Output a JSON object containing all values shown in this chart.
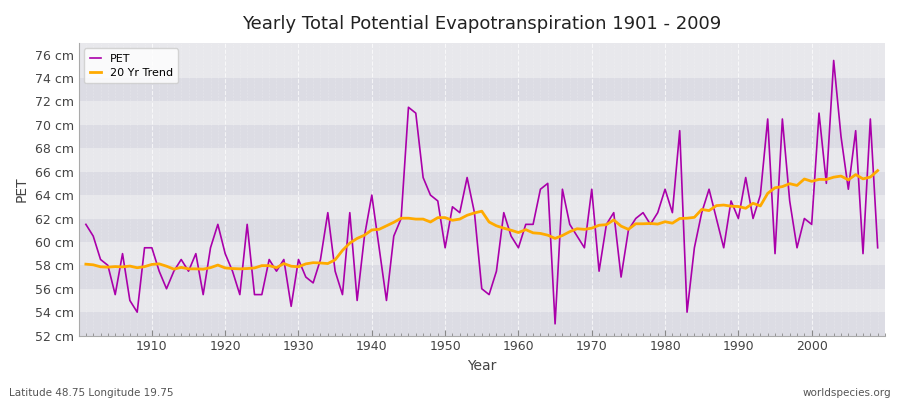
{
  "title": "Yearly Total Potential Evapotranspiration 1901 - 2009",
  "xlabel": "Year",
  "ylabel": "PET",
  "bottom_left_label": "Latitude 48.75 Longitude 19.75",
  "bottom_right_label": "worldspecies.org",
  "pet_color": "#aa00aa",
  "trend_color": "#ffaa00",
  "bg_color": "#ffffff",
  "plot_bg_color": "#e8e8ec",
  "stripe_color": "#dcdce4",
  "ylim": [
    52,
    77
  ],
  "ytick_step": 2,
  "years": [
    1901,
    1902,
    1903,
    1904,
    1905,
    1906,
    1907,
    1908,
    1909,
    1910,
    1911,
    1912,
    1913,
    1914,
    1915,
    1916,
    1917,
    1918,
    1919,
    1920,
    1921,
    1922,
    1923,
    1924,
    1925,
    1926,
    1927,
    1928,
    1929,
    1930,
    1931,
    1932,
    1933,
    1934,
    1935,
    1936,
    1937,
    1938,
    1939,
    1940,
    1941,
    1942,
    1943,
    1944,
    1945,
    1946,
    1947,
    1948,
    1949,
    1950,
    1951,
    1952,
    1953,
    1954,
    1955,
    1956,
    1957,
    1958,
    1959,
    1960,
    1961,
    1962,
    1963,
    1964,
    1965,
    1966,
    1967,
    1968,
    1969,
    1970,
    1971,
    1972,
    1973,
    1974,
    1975,
    1976,
    1977,
    1978,
    1979,
    1980,
    1981,
    1982,
    1983,
    1984,
    1985,
    1986,
    1987,
    1988,
    1989,
    1990,
    1991,
    1992,
    1993,
    1994,
    1995,
    1996,
    1997,
    1998,
    1999,
    2000,
    2001,
    2002,
    2003,
    2004,
    2005,
    2006,
    2007,
    2008,
    2009
  ],
  "pet_values": [
    61.5,
    60.5,
    58.5,
    58.0,
    55.5,
    59.0,
    55.0,
    54.0,
    59.5,
    59.5,
    57.5,
    56.0,
    57.5,
    58.5,
    57.5,
    59.0,
    55.5,
    59.5,
    61.5,
    59.0,
    57.5,
    55.5,
    61.5,
    55.5,
    55.5,
    58.5,
    57.5,
    58.5,
    54.5,
    58.5,
    57.0,
    56.5,
    58.5,
    62.5,
    57.5,
    55.5,
    62.5,
    55.0,
    60.5,
    64.0,
    59.5,
    55.0,
    60.5,
    62.0,
    71.5,
    71.0,
    65.5,
    64.0,
    63.5,
    59.5,
    63.0,
    62.5,
    65.5,
    62.5,
    56.0,
    55.5,
    57.5,
    62.5,
    60.5,
    59.5,
    61.5,
    61.5,
    64.5,
    65.0,
    53.0,
    64.5,
    61.5,
    60.5,
    59.5,
    64.5,
    57.5,
    61.5,
    62.5,
    57.0,
    61.0,
    62.0,
    62.5,
    61.5,
    62.5,
    64.5,
    62.5,
    69.5,
    54.0,
    59.5,
    62.5,
    64.5,
    62.0,
    59.5,
    63.5,
    62.0,
    65.5,
    62.0,
    64.0,
    70.5,
    59.0,
    70.5,
    63.5,
    59.5,
    62.0,
    61.5,
    71.0,
    65.0,
    75.5,
    69.0,
    64.5,
    69.5,
    59.0,
    70.5,
    59.5
  ]
}
